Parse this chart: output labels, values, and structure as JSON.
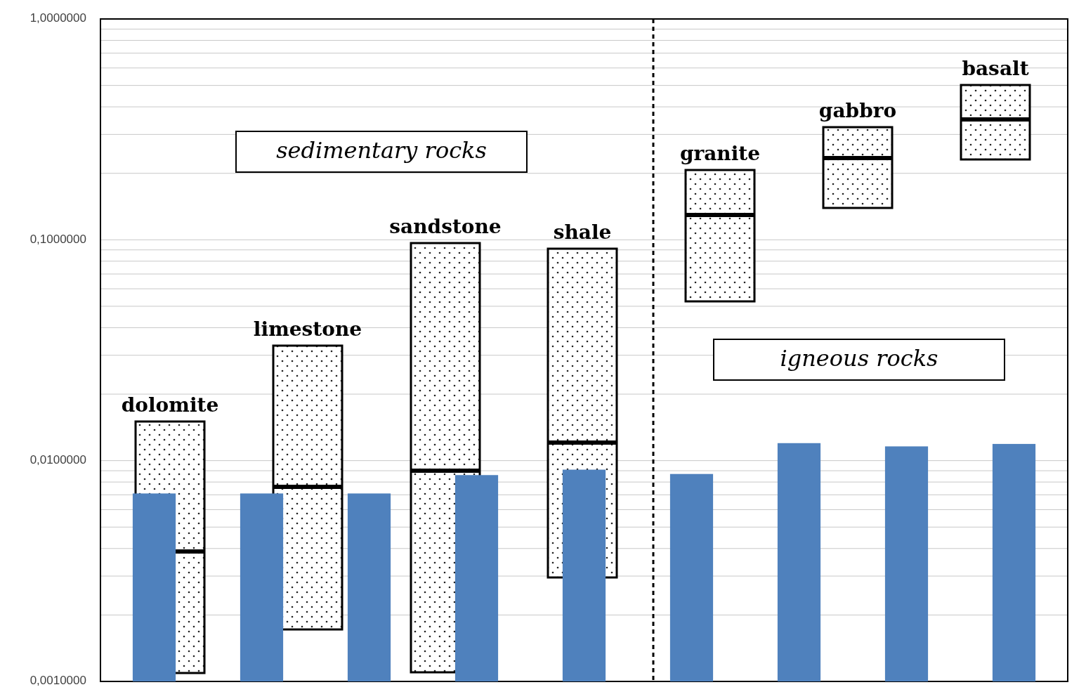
{
  "chart_data": {
    "type": "bar",
    "log": "y",
    "ylim": [
      0.001,
      1
    ],
    "tick_labels": "y",
    "grid": "y",
    "categories": [
      null,
      null,
      null,
      null,
      null,
      null,
      null,
      null,
      null
    ],
    "yticks": [
      {
        "value": 0.001,
        "label": "0,0010000"
      },
      {
        "value": 0.002,
        "label": null
      },
      {
        "value": 0.003,
        "label": null
      },
      {
        "value": 0.004,
        "label": null
      },
      {
        "value": 0.005,
        "label": null
      },
      {
        "value": 0.006,
        "label": null
      },
      {
        "value": 0.007,
        "label": null
      },
      {
        "value": 0.008,
        "label": null
      },
      {
        "value": 0.009,
        "label": null
      },
      {
        "value": 0.01,
        "label": "0,0100000"
      },
      {
        "value": 0.02,
        "label": null
      },
      {
        "value": 0.03,
        "label": null
      },
      {
        "value": 0.04,
        "label": null
      },
      {
        "value": 0.05,
        "label": null
      },
      {
        "value": 0.06,
        "label": null
      },
      {
        "value": 0.07,
        "label": null
      },
      {
        "value": 0.08,
        "label": null
      },
      {
        "value": 0.09,
        "label": null
      },
      {
        "value": 0.1,
        "label": "0,1000000"
      },
      {
        "value": 0.2,
        "label": null
      },
      {
        "value": 0.3,
        "label": null
      },
      {
        "value": 0.4,
        "label": null
      },
      {
        "value": 0.5,
        "label": null
      },
      {
        "value": 0.6,
        "label": null
      },
      {
        "value": 0.7,
        "label": null
      },
      {
        "value": 0.8,
        "label": null
      },
      {
        "value": 0.9,
        "label": null
      },
      {
        "value": 1,
        "label": "1,0000000"
      }
    ],
    "series": [
      {
        "color": "#4f81bd",
        "values": [
          0.0071,
          0.0071,
          0.0071,
          0.0086,
          0.0091,
          0.0087,
          0.012,
          0.0116,
          0.0119
        ]
      }
    ],
    "annotations": [
      "sedimentary rocks",
      "igneous rocks",
      "dolomite",
      "limestone",
      "sandstone",
      "shale",
      "granite",
      "gabbro",
      "basalt"
    ]
  }
}
